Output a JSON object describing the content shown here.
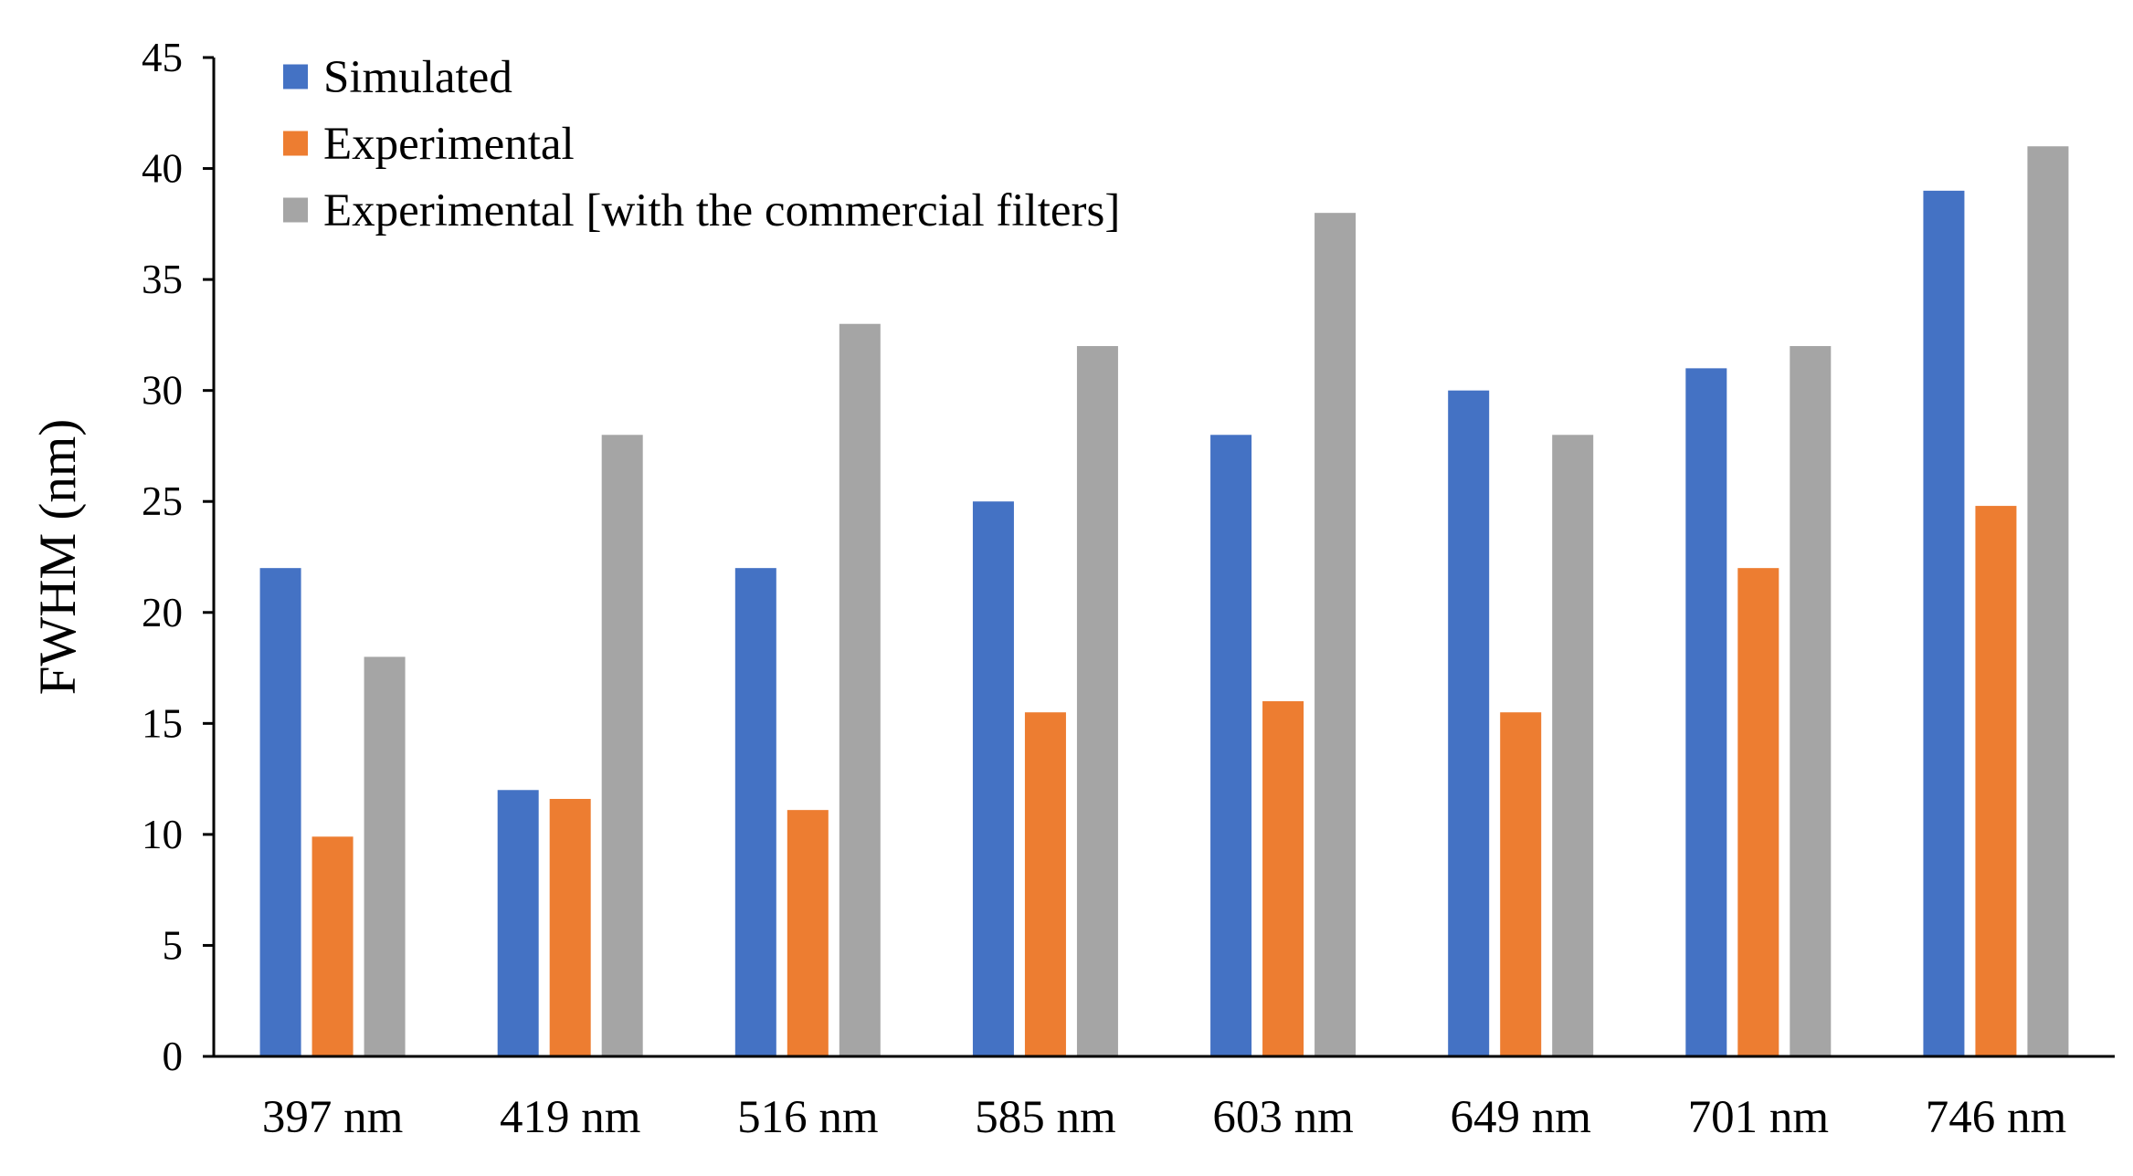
{
  "chart_data": {
    "type": "bar",
    "title": "",
    "xlabel": "",
    "ylabel": "FWHM (nm)",
    "ylim": [
      0,
      45
    ],
    "ytick_step": 5,
    "grid": false,
    "legend_position": "top-left",
    "categories": [
      "397 nm",
      "419 nm",
      "516 nm",
      "585 nm",
      "603 nm",
      "649 nm",
      "701 nm",
      "746 nm"
    ],
    "series": [
      {
        "name": "Simulated",
        "color": "#4472C4",
        "values": [
          22,
          12,
          22,
          25,
          28,
          30,
          31,
          39
        ]
      },
      {
        "name": "Experimental",
        "color": "#ED7D31",
        "values": [
          9.9,
          11.6,
          11.1,
          15.5,
          16,
          15.5,
          22,
          24.8
        ]
      },
      {
        "name": "Experimental [with the commercial filters]",
        "color": "#A5A5A5",
        "values": [
          18,
          28,
          33,
          32,
          38,
          28,
          32,
          41
        ]
      }
    ]
  }
}
